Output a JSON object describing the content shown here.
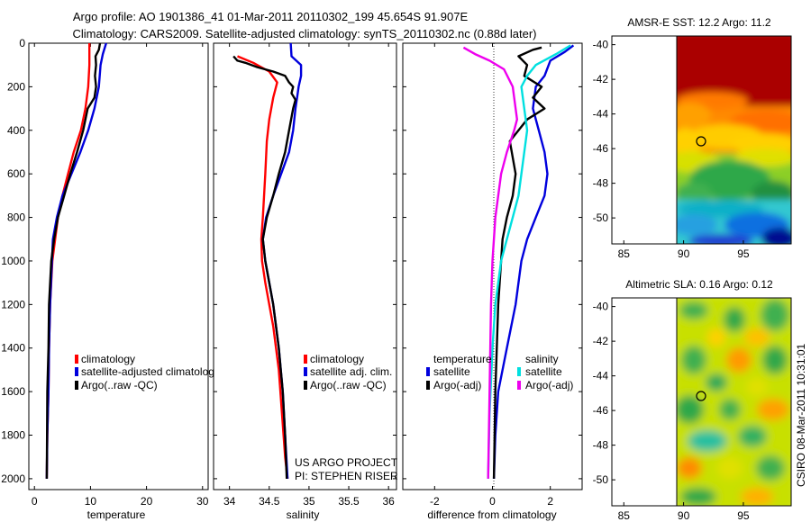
{
  "title_line1": "Argo profile: AO 1901386_41 01-Mar-2011 20110302_199 45.654S 91.907E",
  "title_line2": "Climatology: CARS2009. Satellite-adjusted climatology: synTS_20110302.nc (0.88d later)",
  "side_text": "CSIRO 08-Mar-2011 10:31:01",
  "project_text": "US ARGO PROJECT",
  "pi_text": "PI: STEPHEN RISER",
  "colors": {
    "climatology": "#ff0000",
    "satellite": "#0000dd",
    "argo": "#000000",
    "diff_satellite": "#00e0e0",
    "diff_argo": "#ee00ee"
  },
  "chart_data": [
    {
      "id": "temperature",
      "type": "line",
      "xlabel": "temperature",
      "ylabel": "",
      "xlim": [
        -1,
        31
      ],
      "ylim": [
        2050,
        0
      ],
      "xticks": [
        0,
        10,
        20,
        30
      ],
      "yticks": [
        0,
        200,
        400,
        600,
        800,
        1000,
        1200,
        1400,
        1600,
        1800,
        2000
      ],
      "legend": [
        "climatology",
        "satellite-adjusted climatolog",
        "Argo(..raw -QC)"
      ],
      "legend_position": "lower-center",
      "series": [
        {
          "name": "climatology",
          "color": "#ff0000",
          "x": [
            9.8,
            9.8,
            9.6,
            9.1,
            8.3,
            7.0,
            6.0,
            5.0,
            4.2,
            3.7,
            3.2,
            2.8,
            2.6,
            2.5,
            2.3,
            2.2
          ],
          "y": [
            0,
            100,
            200,
            300,
            400,
            500,
            600,
            700,
            800,
            900,
            1000,
            1200,
            1400,
            1600,
            1800,
            2000
          ]
        },
        {
          "name": "satellite-adjusted climatolog",
          "color": "#0000dd",
          "x": [
            12.8,
            12.2,
            11.8,
            11.5,
            10.7,
            9.6,
            8.2,
            6.6,
            5.0,
            4.0,
            3.3,
            2.8,
            2.6,
            2.5,
            2.3,
            2.2
          ],
          "y": [
            0,
            50,
            100,
            200,
            300,
            400,
            500,
            600,
            700,
            800,
            900,
            1200,
            1400,
            1600,
            1800,
            2000
          ]
        },
        {
          "name": "Argo(..raw -QC)",
          "color": "#000000",
          "x": [
            11.7,
            11.5,
            10.9,
            11.0,
            10.8,
            11.0,
            10.7,
            9.5,
            8.7,
            7.6,
            6.4,
            5.3,
            4.2,
            3.5,
            3.0,
            2.6,
            2.5,
            2.3,
            2.2
          ],
          "y": [
            0,
            30,
            60,
            100,
            150,
            200,
            250,
            300,
            400,
            500,
            600,
            700,
            800,
            900,
            1000,
            1200,
            1400,
            1600,
            2000
          ]
        }
      ]
    },
    {
      "id": "salinity",
      "type": "line",
      "xlabel": "salinity",
      "ylabel": "",
      "xlim": [
        33.8,
        36.1
      ],
      "ylim": [
        2050,
        0
      ],
      "xticks": [
        34,
        34.5,
        35,
        35.5,
        36
      ],
      "legend": [
        "climatology",
        "satellite adj. clim.",
        "Argo(..raw -QC)"
      ],
      "legend_position": "lower-right",
      "series": [
        {
          "name": "climatology",
          "color": "#ff0000",
          "x": [
            34.1,
            34.3,
            34.5,
            34.6,
            34.55,
            34.5,
            34.47,
            34.45,
            34.42,
            34.4,
            34.41,
            34.45,
            34.55,
            34.62,
            34.66,
            34.7,
            34.73
          ],
          "y": [
            60,
            90,
            130,
            180,
            250,
            350,
            450,
            600,
            800,
            900,
            1000,
            1100,
            1300,
            1500,
            1700,
            1900,
            2000
          ]
        },
        {
          "name": "satellite adj. clim.",
          "color": "#0000dd",
          "x": [
            34.77,
            34.78,
            34.9,
            34.9,
            34.87,
            34.85,
            34.83,
            34.8,
            34.75,
            34.65,
            34.55,
            34.46,
            34.42,
            34.45,
            34.55,
            34.62,
            34.67,
            34.7,
            34.73
          ],
          "y": [
            0,
            60,
            100,
            150,
            200,
            250,
            300,
            400,
            500,
            600,
            700,
            800,
            900,
            1000,
            1200,
            1400,
            1600,
            1800,
            2000
          ]
        },
        {
          "name": "Argo(..raw -QC)",
          "color": "#000000",
          "x": [
            34.05,
            34.1,
            34.2,
            34.35,
            34.55,
            34.7,
            34.75,
            34.8,
            34.78,
            34.83,
            34.8,
            34.75,
            34.7,
            34.62,
            34.55,
            34.47,
            34.42,
            34.45,
            34.55,
            34.62,
            34.67,
            34.7,
            34.72
          ],
          "y": [
            60,
            80,
            90,
            110,
            130,
            150,
            180,
            200,
            230,
            260,
            300,
            400,
            500,
            600,
            700,
            800,
            900,
            1000,
            1200,
            1400,
            1600,
            1800,
            2000
          ]
        }
      ]
    },
    {
      "id": "difference",
      "type": "line",
      "xlabel": "difference from climatology",
      "ylabel": "",
      "xlim": [
        -3.1,
        3.1
      ],
      "ylim": [
        2050,
        0
      ],
      "xticks": [
        -2,
        0,
        2
      ],
      "legend_headers": [
        "temperature",
        "salinity"
      ],
      "legend": [
        "satellite",
        "Argo(-adj)",
        "satellite",
        "Argo(-adj)"
      ],
      "legend_position": "lower-center",
      "series": [
        {
          "name": "temperature satellite",
          "color": "#0000dd",
          "x": [
            2.8,
            2.5,
            2.0,
            1.8,
            1.5,
            1.4,
            1.6,
            1.8,
            1.9,
            1.8,
            1.5,
            1.2,
            1.0,
            0.8,
            0.5,
            0.2,
            0.1,
            0.05
          ],
          "y": [
            10,
            40,
            80,
            150,
            200,
            300,
            400,
            500,
            600,
            700,
            800,
            900,
            1000,
            1200,
            1400,
            1600,
            1800,
            2000
          ]
        },
        {
          "name": "temperature Argo(-adj)",
          "color": "#000000",
          "x": [
            1.7,
            1.4,
            0.9,
            1.2,
            1.1,
            1.7,
            1.4,
            1.8,
            1.2,
            0.6,
            0.8,
            0.7,
            0.5,
            0.35,
            0.2,
            0.1,
            0.05
          ],
          "y": [
            20,
            30,
            60,
            100,
            150,
            200,
            250,
            300,
            350,
            450,
            600,
            700,
            800,
            900,
            1200,
            1600,
            2000
          ]
        },
        {
          "name": "salinity satellite",
          "color": "#00e0e0",
          "x": [
            2.7,
            2.2,
            1.5,
            1.2,
            1.0,
            1.1,
            1.2,
            1.1,
            1.0,
            0.9,
            0.7,
            0.5,
            0.3,
            0.1,
            0.0,
            -0.1,
            -0.15
          ],
          "y": [
            10,
            50,
            100,
            150,
            200,
            300,
            400,
            500,
            600,
            700,
            800,
            900,
            1000,
            1200,
            1400,
            1700,
            2000
          ]
        },
        {
          "name": "salinity Argo(-adj)",
          "color": "#ee00ee",
          "x": [
            -1.0,
            -0.6,
            -0.1,
            0.4,
            0.7,
            0.8,
            0.85,
            0.75,
            0.5,
            0.3,
            0.1,
            0.0,
            -0.05,
            -0.1,
            -0.15
          ],
          "y": [
            20,
            50,
            80,
            120,
            200,
            300,
            350,
            400,
            500,
            600,
            800,
            1000,
            1200,
            1600,
            2000
          ]
        }
      ]
    },
    {
      "id": "sst-map",
      "type": "heatmap",
      "title": "AMSR-E SST: 12.2 Argo: 11.2",
      "xlim": [
        84,
        99
      ],
      "ylim": [
        -51.5,
        -39.5
      ],
      "xticks": [
        85,
        90,
        95
      ],
      "yticks": [
        -40,
        -42,
        -44,
        -46,
        -48,
        -50
      ],
      "data_xrange": [
        90,
        99
      ],
      "marker": {
        "lon": 91.907,
        "lat": -45.654
      }
    },
    {
      "id": "sla-map",
      "type": "heatmap",
      "title": "Altimetric SLA: 0.16 Argo: 0.12",
      "xlim": [
        84,
        99
      ],
      "ylim": [
        -51.5,
        -39.5
      ],
      "xticks": [
        85,
        90,
        95
      ],
      "yticks": [
        -40,
        -42,
        -44,
        -46,
        -48,
        -50
      ],
      "data_xrange": [
        90,
        99
      ],
      "marker": {
        "lon": 91.907,
        "lat": -45.654
      }
    }
  ]
}
